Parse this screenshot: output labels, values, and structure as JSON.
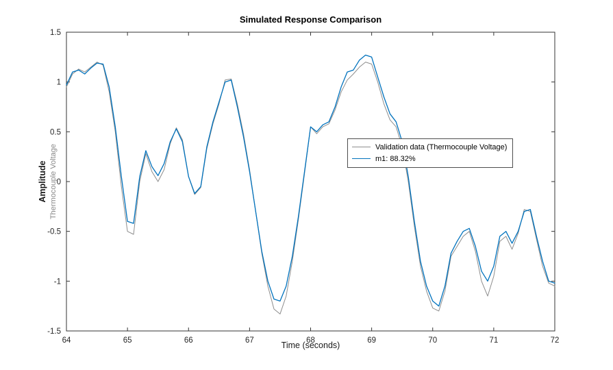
{
  "figure": {
    "background": "#ffffff"
  },
  "chart_data": {
    "type": "line",
    "title": "Simulated Response Comparison",
    "xlabel": "Time (seconds)",
    "ylabel": "Amplitude",
    "ylabel_sub": "Thermocouple Voltage",
    "xlim": [
      64,
      72
    ],
    "ylim": [
      -1.5,
      1.5
    ],
    "xticks": [
      64,
      65,
      66,
      67,
      68,
      69,
      70,
      71,
      72
    ],
    "xtick_labels": [
      "64",
      "65",
      "66",
      "67",
      "68",
      "69",
      "70",
      "71",
      "72"
    ],
    "yticks": [
      -1.5,
      -1,
      -0.5,
      0,
      0.5,
      1,
      1.5
    ],
    "ytick_labels": [
      "-1.5",
      "-1",
      "-0.5",
      "0",
      "0.5",
      "1",
      "1.5"
    ],
    "grid": false,
    "legend_position": "center-right",
    "x_start": 64,
    "x_step": 0.1,
    "series": [
      {
        "name": "Validation data (Thermocouple Voltage)",
        "color": "#8c8c8c",
        "width": 1,
        "values": [
          0.95,
          1.08,
          1.13,
          1.1,
          1.15,
          1.2,
          1.17,
          0.9,
          0.5,
          -0.05,
          -0.5,
          -0.53,
          0.0,
          0.28,
          0.1,
          0.0,
          0.12,
          0.38,
          0.54,
          0.42,
          0.05,
          -0.13,
          -0.06,
          0.33,
          0.58,
          0.78,
          1.02,
          1.03,
          0.78,
          0.48,
          0.12,
          -0.3,
          -0.72,
          -1.05,
          -1.28,
          -1.33,
          -1.15,
          -0.8,
          -0.38,
          0.08,
          0.55,
          0.48,
          0.55,
          0.58,
          0.72,
          0.9,
          1.02,
          1.08,
          1.15,
          1.2,
          1.18,
          1.0,
          0.78,
          0.62,
          0.55,
          0.35,
          0.0,
          -0.45,
          -0.85,
          -1.1,
          -1.27,
          -1.3,
          -1.1,
          -0.75,
          -0.65,
          -0.55,
          -0.5,
          -0.7,
          -1.0,
          -1.15,
          -0.95,
          -0.6,
          -0.55,
          -0.68,
          -0.52,
          -0.28,
          -0.3,
          -0.58,
          -0.85,
          -1.02,
          -1.05
        ]
      },
      {
        "name": "m1: 88.32%",
        "color": "#0072BD",
        "width": 1.3,
        "values": [
          0.97,
          1.1,
          1.12,
          1.08,
          1.14,
          1.19,
          1.18,
          0.95,
          0.55,
          0.05,
          -0.4,
          -0.42,
          0.05,
          0.31,
          0.15,
          0.06,
          0.18,
          0.4,
          0.53,
          0.4,
          0.05,
          -0.12,
          -0.05,
          0.35,
          0.6,
          0.8,
          1.0,
          1.02,
          0.75,
          0.45,
          0.1,
          -0.3,
          -0.7,
          -1.0,
          -1.18,
          -1.2,
          -1.05,
          -0.75,
          -0.35,
          0.1,
          0.55,
          0.5,
          0.57,
          0.6,
          0.75,
          0.95,
          1.1,
          1.12,
          1.22,
          1.27,
          1.25,
          1.05,
          0.85,
          0.68,
          0.6,
          0.4,
          0.05,
          -0.4,
          -0.8,
          -1.05,
          -1.2,
          -1.25,
          -1.05,
          -0.72,
          -0.6,
          -0.5,
          -0.47,
          -0.65,
          -0.9,
          -1.0,
          -0.85,
          -0.55,
          -0.5,
          -0.62,
          -0.5,
          -0.3,
          -0.28,
          -0.55,
          -0.8,
          -1.0,
          -1.02
        ]
      }
    ]
  }
}
